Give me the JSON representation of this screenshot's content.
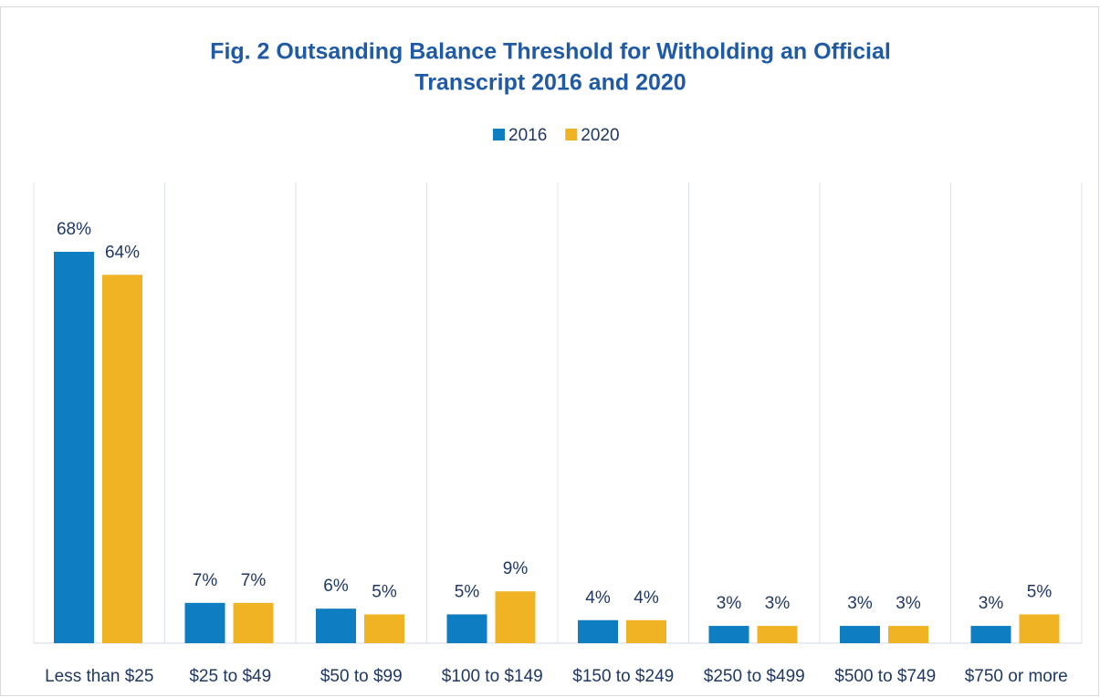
{
  "chart_data": {
    "type": "bar",
    "title": [
      "Fig. 2 Outsanding Balance Threshold for Witholding an Official",
      "Transcript 2016 and 2020"
    ],
    "categories": [
      "Less than $25",
      "$25 to $49",
      "$50 to $99",
      "$100 to $149",
      "$150 to $249",
      "$250 to $499",
      "$500 to $749",
      "$750 or more"
    ],
    "series": [
      {
        "name": "2016",
        "color": "#0f7dc2",
        "values": [
          68,
          7,
          6,
          5,
          4,
          3,
          3,
          3
        ],
        "value_labels": [
          "68%",
          "7%",
          "6%",
          "5%",
          "4%",
          "3%",
          "3%",
          "3%"
        ]
      },
      {
        "name": "2020",
        "color": "#f0b323",
        "values": [
          64,
          7,
          5,
          9,
          4,
          3,
          3,
          5
        ],
        "value_labels": [
          "64%",
          "7%",
          "5%",
          "9%",
          "4%",
          "3%",
          "3%",
          "5%"
        ]
      }
    ],
    "legend": "top",
    "grid": true
  }
}
